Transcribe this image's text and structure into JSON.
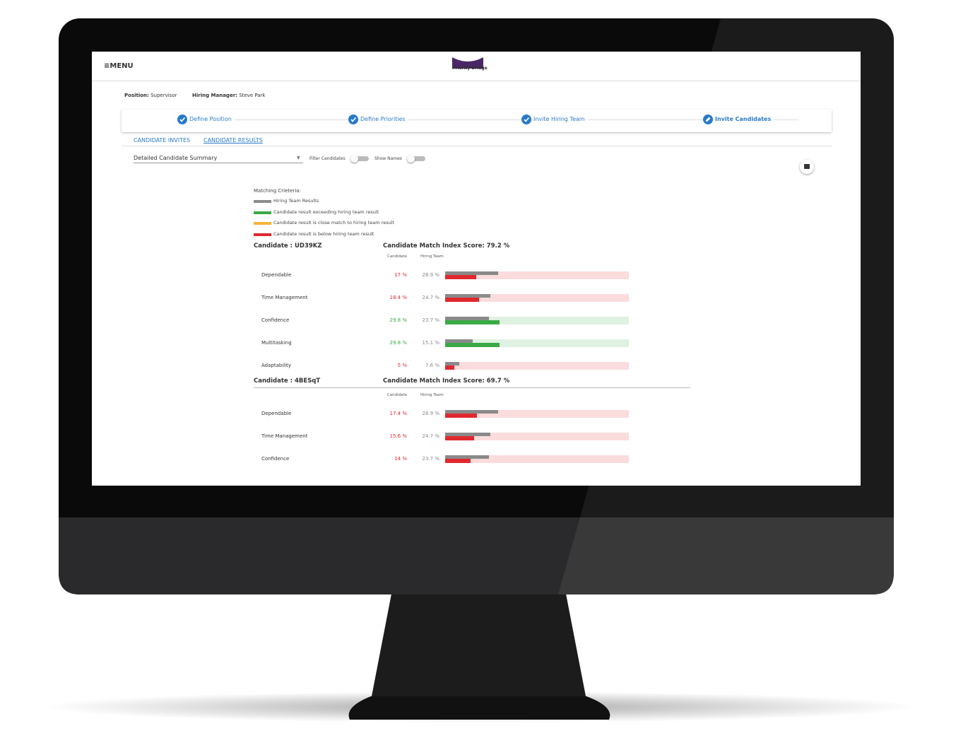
{
  "header": {
    "menu": "≡MENU",
    "logo": "Priority Bridge"
  },
  "position": {
    "label": "Position:",
    "value": "Supervisor"
  },
  "hiring_manager": {
    "label": "Hiring Manager:",
    "value": "Steve Park"
  },
  "steps": [
    "Define Position",
    "Define Priorities",
    "Invite Hiring Team",
    "Invite Candidates"
  ],
  "tabs": [
    "CANDIDATE INVITES",
    "CANDIDATE RESULTS"
  ],
  "dropdown": "Detailed Candidate Summary",
  "toggles": [
    "Filter Candidates",
    "Show Names"
  ],
  "legend": {
    "title": "Matching Crieteria:",
    "items": [
      {
        "name": "Hiring Team Results",
        "color": "#8a8a8a"
      },
      {
        "name": "Candidate result exceeding hiring team result",
        "color": "#3aaa46"
      },
      {
        "name": "Candidate result is close match to hiring team result",
        "color": "#f2b536"
      },
      {
        "name": "Candidate result is below hiring team result",
        "color": "#e0282e"
      }
    ]
  },
  "columns": [
    "Candidate",
    "Hiring Team"
  ],
  "candidates": [
    {
      "name": "Candidate : UD39KZ",
      "score": "Candidate Match Index Score: 79.2 %",
      "rows": [
        {
          "name": "Dependable",
          "candidate": 17,
          "candidate_label": "17 %",
          "team": 28.9,
          "team_label": "28.9 %",
          "color": "#e0282e"
        },
        {
          "name": "Time Management",
          "candidate": 18.4,
          "candidate_label": "18.4 %",
          "team": 24.7,
          "team_label": "24.7 %",
          "color": "#e0282e"
        },
        {
          "name": "Confidence",
          "candidate": 29.8,
          "candidate_label": "29.8 %",
          "team": 23.7,
          "team_label": "23.7 %",
          "color": "#3aaa46"
        },
        {
          "name": "Multitasking",
          "candidate": 29.8,
          "candidate_label": "29.8 %",
          "team": 15.1,
          "team_label": "15.1 %",
          "color": "#3aaa46"
        },
        {
          "name": "Adaptability",
          "candidate": 5,
          "candidate_label": "5 %",
          "team": 7.6,
          "team_label": "7.6 %",
          "color": "#e0282e"
        }
      ]
    },
    {
      "name": "Candidate : 4BESqT",
      "score": "Candidate Match Index Score: 69.7 %",
      "rows": [
        {
          "name": "Dependable",
          "candidate": 17.4,
          "candidate_label": "17.4 %",
          "team": 28.9,
          "team_label": "28.9 %",
          "color": "#e0282e"
        },
        {
          "name": "Time Management",
          "candidate": 15.6,
          "candidate_label": "15.6 %",
          "team": 24.7,
          "team_label": "24.7 %",
          "color": "#e0282e"
        },
        {
          "name": "Confidence",
          "candidate": 14,
          "candidate_label": "14 %",
          "team": 23.7,
          "team_label": "23.7 %",
          "color": "#e0282e"
        }
      ]
    }
  ]
}
